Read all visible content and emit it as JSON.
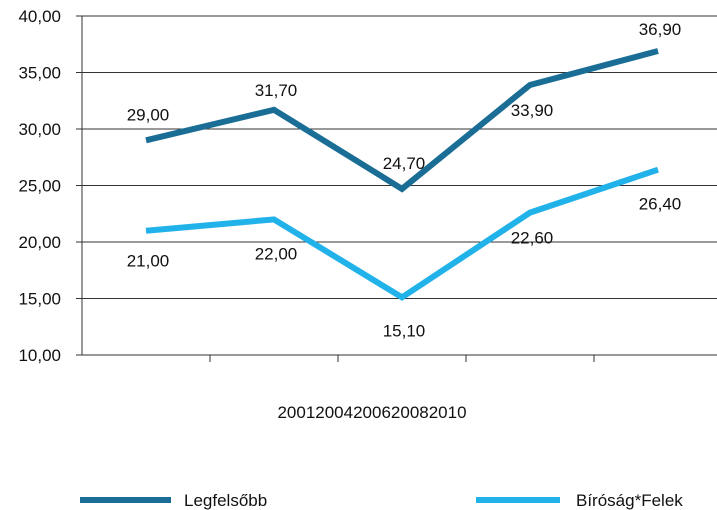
{
  "chart_data": {
    "type": "line",
    "categories": [
      "2001",
      "2004",
      "2006",
      "2008",
      "2010"
    ],
    "x_axis_text": "20012004200620082010",
    "series": [
      {
        "name": "Legfelsőbb",
        "values": [
          29.0,
          31.7,
          24.7,
          33.9,
          36.9
        ],
        "labels": [
          "29,00",
          "31,70",
          "24,70",
          "33,90",
          "36,90"
        ],
        "color": "#1a6e96"
      },
      {
        "name": "Bíróság*Felek",
        "values": [
          21.0,
          22.0,
          15.1,
          22.6,
          26.4
        ],
        "labels": [
          "21,00",
          "22,00",
          "15,10",
          "22,60",
          "26,40"
        ],
        "color": "#22b2ea"
      }
    ],
    "y_ticks": [
      "10,00",
      "15,00",
      "20,00",
      "25,00",
      "30,00",
      "35,00",
      "40,00"
    ],
    "ylim": [
      10,
      40
    ],
    "ystep": 5,
    "grid": true,
    "legend_position": "bottom"
  }
}
